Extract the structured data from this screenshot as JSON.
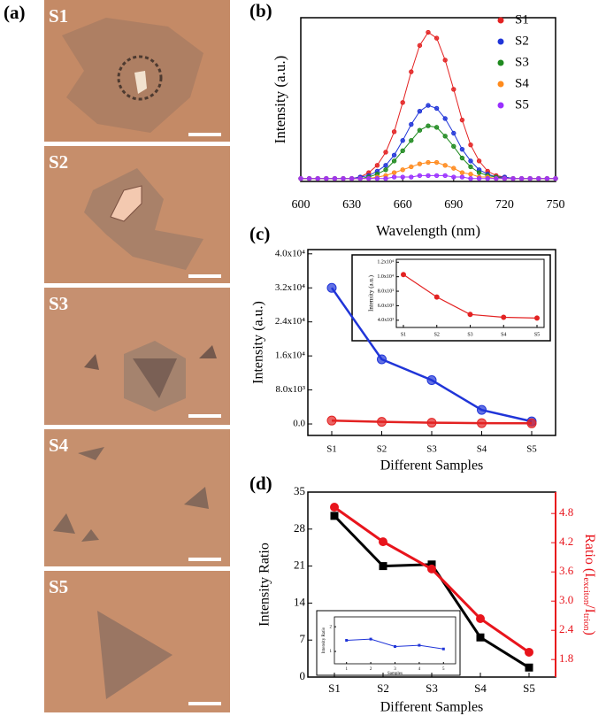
{
  "panel_a": {
    "panel_label": "(a)",
    "labels": [
      "S1",
      "S2",
      "S3",
      "S4",
      "S5"
    ]
  },
  "chart_data": [
    {
      "type": "line",
      "panel_label": "(b)",
      "xlabel": "Wavelength (nm)",
      "ylabel": "Intensity (a.u.)",
      "x": [
        600,
        605,
        610,
        615,
        620,
        625,
        630,
        635,
        640,
        645,
        650,
        655,
        660,
        665,
        670,
        675,
        680,
        685,
        690,
        695,
        700,
        705,
        710,
        715,
        720,
        725,
        730,
        735,
        740,
        745,
        750
      ],
      "xlim": [
        600,
        750
      ],
      "xticks": [
        600,
        630,
        660,
        690,
        720,
        750
      ],
      "ylim": [
        0,
        1.12
      ],
      "legend": "upper right",
      "marker": "circle",
      "series": [
        {
          "name": "S1",
          "color": "#e32222",
          "values": [
            0.02,
            0.02,
            0.02,
            0.02,
            0.02,
            0.02,
            0.02,
            0.03,
            0.06,
            0.11,
            0.2,
            0.34,
            0.54,
            0.75,
            0.93,
            1.02,
            0.98,
            0.83,
            0.63,
            0.42,
            0.25,
            0.14,
            0.07,
            0.04,
            0.03,
            0.02,
            0.02,
            0.02,
            0.02,
            0.02,
            0.02
          ]
        },
        {
          "name": "S2",
          "color": "#2035d8",
          "values": [
            0.02,
            0.02,
            0.02,
            0.02,
            0.02,
            0.02,
            0.02,
            0.03,
            0.04,
            0.07,
            0.11,
            0.18,
            0.28,
            0.39,
            0.48,
            0.52,
            0.5,
            0.43,
            0.33,
            0.22,
            0.14,
            0.08,
            0.05,
            0.03,
            0.03,
            0.02,
            0.02,
            0.02,
            0.02,
            0.02,
            0.02
          ]
        },
        {
          "name": "S3",
          "color": "#1f8a1f",
          "values": [
            0.02,
            0.02,
            0.02,
            0.02,
            0.02,
            0.02,
            0.02,
            0.02,
            0.03,
            0.05,
            0.08,
            0.14,
            0.21,
            0.28,
            0.35,
            0.38,
            0.37,
            0.31,
            0.24,
            0.16,
            0.1,
            0.06,
            0.04,
            0.03,
            0.02,
            0.02,
            0.02,
            0.02,
            0.02,
            0.02,
            0.02
          ]
        },
        {
          "name": "S4",
          "color": "#ff8a1c",
          "values": [
            0.02,
            0.02,
            0.02,
            0.02,
            0.02,
            0.02,
            0.02,
            0.02,
            0.02,
            0.03,
            0.04,
            0.06,
            0.08,
            0.1,
            0.12,
            0.13,
            0.13,
            0.11,
            0.09,
            0.06,
            0.05,
            0.03,
            0.03,
            0.02,
            0.02,
            0.02,
            0.02,
            0.02,
            0.02,
            0.02,
            0.02
          ]
        },
        {
          "name": "S5",
          "color": "#9a2fff",
          "values": [
            0.02,
            0.02,
            0.02,
            0.02,
            0.02,
            0.02,
            0.02,
            0.02,
            0.02,
            0.02,
            0.02,
            0.03,
            0.03,
            0.03,
            0.04,
            0.04,
            0.04,
            0.04,
            0.03,
            0.03,
            0.02,
            0.02,
            0.02,
            0.02,
            0.02,
            0.02,
            0.02,
            0.02,
            0.02,
            0.02,
            0.02
          ]
        }
      ]
    },
    {
      "type": "line",
      "panel_label": "(c)",
      "xlabel": "Different Samples",
      "ylabel": "Intensity (a.u.)",
      "categories": [
        "S1",
        "S2",
        "S3",
        "S4",
        "S5"
      ],
      "ylim": [
        -2700,
        41000
      ],
      "marker": "circle",
      "yticks": [
        {
          "value": 0,
          "label": "0.0"
        },
        {
          "value": 8000,
          "label": "8.0x10³"
        },
        {
          "value": 16000,
          "label": "1.6x10⁴"
        },
        {
          "value": 24000,
          "label": "2.4x10⁴"
        },
        {
          "value": 32000,
          "label": "3.2x10⁴"
        },
        {
          "value": 40000,
          "label": "4.0x10⁴"
        }
      ],
      "series": [
        {
          "color": "#2035d8",
          "values": [
            32000,
            15200,
            10300,
            3300,
            600
          ]
        },
        {
          "color": "#e32222",
          "values": [
            800,
            500,
            300,
            200,
            150
          ]
        }
      ],
      "inset": {
        "type": "line",
        "ylabel": "Intensity (a.u.)",
        "categories": [
          "S1",
          "S2",
          "S3",
          "S4",
          "S5"
        ],
        "ylim": [
          3000,
          12400
        ],
        "marker": "circle",
        "yticks": [
          {
            "value": 4000,
            "label": "4.0x10³"
          },
          {
            "value": 6000,
            "label": "6.0x10³"
          },
          {
            "value": 8000,
            "label": "8.0x10³"
          },
          {
            "value": 10000,
            "label": "1.0x10⁴"
          },
          {
            "value": 12000,
            "label": "1.2x10⁴"
          }
        ],
        "series": [
          {
            "color": "#e32222",
            "values": [
              10300,
              7200,
              4800,
              4400,
              4300
            ]
          }
        ]
      }
    },
    {
      "type": "line",
      "panel_label": "(d)",
      "xlabel": "Different Samples",
      "ylabel": "Intensity Ratio",
      "y2label_parts": [
        "Ratio (I",
        "exciton",
        "/I",
        "trion",
        ")"
      ],
      "categories": [
        "S1",
        "S2",
        "S3",
        "S4",
        "S5"
      ],
      "ylim": [
        0,
        35
      ],
      "yticks": [
        0,
        7,
        14,
        21,
        28,
        35
      ],
      "y2lim": [
        1.44,
        5.24
      ],
      "y2ticks": [
        1.8,
        2.4,
        3.0,
        3.6,
        4.2,
        4.8
      ],
      "y2color": "#e8141c",
      "series": [
        {
          "color": "#000000",
          "marker": "square",
          "values": [
            30.5,
            21,
            21.3,
            7.5,
            1.8
          ]
        },
        {
          "color": "#e8141c",
          "marker": "circle",
          "axis": "y2",
          "values": [
            4.93,
            4.22,
            3.66,
            2.64,
            1.95
          ]
        }
      ],
      "inset": {
        "type": "line",
        "xlabel": "Samples",
        "ylabel": "Intensity Ratio",
        "x": [
          1,
          2,
          3,
          4,
          5
        ],
        "xlim": [
          0.5,
          5.5
        ],
        "xticks": [
          1,
          2,
          3,
          4,
          5
        ],
        "ylim": [
          0.5,
          2.4
        ],
        "yticks": [
          1,
          2
        ],
        "marker": "square",
        "series": [
          {
            "color": "#2035d8",
            "values": [
              1.45,
              1.5,
              1.2,
              1.25,
              1.1
            ]
          }
        ]
      }
    }
  ]
}
